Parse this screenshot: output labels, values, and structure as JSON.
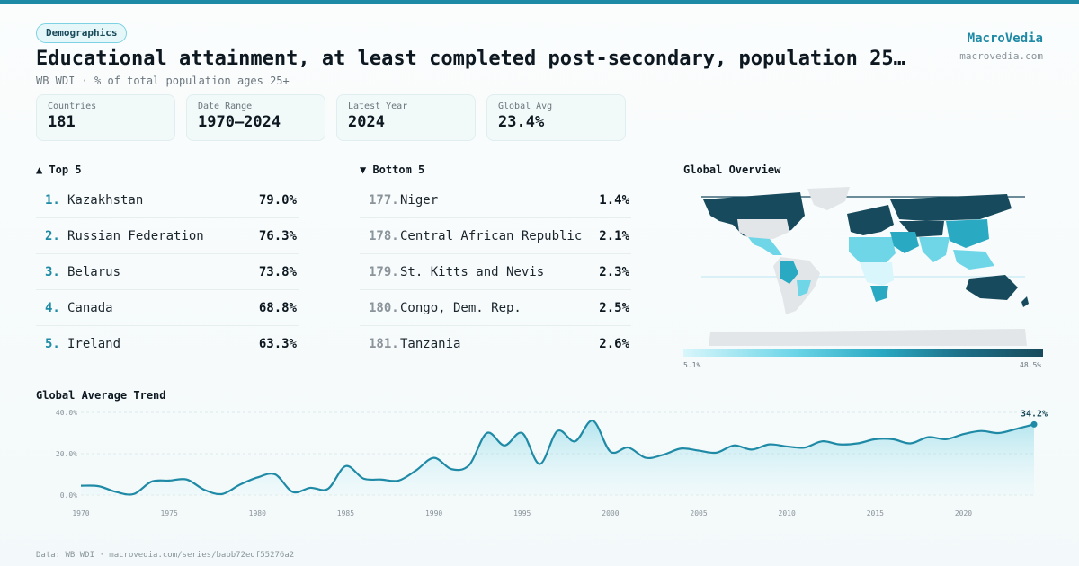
{
  "header": {
    "category": "Demographics",
    "title": "Educational attainment, at least completed post-secondary, population 25…",
    "subtitle": "WB WDI · % of total population ages 25+",
    "brand": "MacroVedia",
    "brand_url": "macrovedia.com"
  },
  "stats": [
    {
      "label": "Countries",
      "value": "181"
    },
    {
      "label": "Date Range",
      "value": "1970–2024"
    },
    {
      "label": "Latest Year",
      "value": "2024"
    },
    {
      "label": "Global Avg",
      "value": "23.4%"
    }
  ],
  "top5": {
    "heading": "▲ Top 5",
    "items": [
      {
        "rank": "1.",
        "name": "Kazakhstan",
        "value": "79.0%"
      },
      {
        "rank": "2.",
        "name": "Russian Federation",
        "value": "76.3%"
      },
      {
        "rank": "3.",
        "name": "Belarus",
        "value": "73.8%"
      },
      {
        "rank": "4.",
        "name": "Canada",
        "value": "68.8%"
      },
      {
        "rank": "5.",
        "name": "Ireland",
        "value": "63.3%"
      }
    ]
  },
  "bottom5": {
    "heading": "▼ Bottom 5",
    "items": [
      {
        "rank": "177.",
        "name": "Niger",
        "value": "1.4%"
      },
      {
        "rank": "178.",
        "name": "Central African Republic",
        "value": "2.1%"
      },
      {
        "rank": "179.",
        "name": "St. Kitts and Nevis",
        "value": "2.3%"
      },
      {
        "rank": "180.",
        "name": "Congo, Dem. Rep.",
        "value": "2.5%"
      },
      {
        "rank": "181.",
        "name": "Tanzania",
        "value": "2.6%"
      }
    ]
  },
  "map": {
    "heading": "Global Overview",
    "legend_min": "5.1%",
    "legend_max": "48.5%",
    "colors": {
      "low": "#d8f6fb",
      "mid": "#2aa9c3",
      "high": "#174a5c",
      "nodata": "#e3e6e8"
    }
  },
  "trend": {
    "heading": "Global Average Trend",
    "last_label": "34.2%"
  },
  "chart_data": {
    "type": "area",
    "title": "",
    "xlabel": "",
    "ylabel": "",
    "x": [
      1970,
      1971,
      1972,
      1973,
      1974,
      1975,
      1976,
      1977,
      1978,
      1979,
      1980,
      1981,
      1982,
      1983,
      1984,
      1985,
      1986,
      1987,
      1988,
      1989,
      1990,
      1991,
      1992,
      1993,
      1994,
      1995,
      1996,
      1997,
      1998,
      1999,
      2000,
      2001,
      2002,
      2003,
      2004,
      2005,
      2006,
      2007,
      2008,
      2009,
      2010,
      2011,
      2012,
      2013,
      2014,
      2015,
      2016,
      2017,
      2018,
      2019,
      2020,
      2021,
      2022,
      2023,
      2024
    ],
    "values": [
      4.5,
      4.3,
      1.5,
      0.5,
      6.5,
      7.0,
      7.5,
      2.5,
      0.5,
      5.0,
      8.5,
      10.0,
      1.5,
      3.5,
      3.0,
      14.0,
      8.0,
      7.5,
      7.0,
      12.0,
      18.0,
      12.5,
      14.5,
      30.0,
      24.0,
      30.0,
      15.0,
      31.0,
      26.0,
      36.0,
      21.0,
      23.0,
      18.0,
      19.5,
      22.5,
      21.5,
      20.5,
      24.0,
      22.0,
      24.5,
      23.5,
      23.0,
      26.0,
      24.5,
      25.0,
      27.0,
      27.0,
      25.0,
      28.0,
      27.0,
      29.5,
      31.0,
      30.0,
      32.0,
      34.2
    ],
    "yticks": [
      "0.0%",
      "20.0%",
      "40.0%"
    ],
    "ytick_values": [
      0,
      20,
      40
    ],
    "xticks": [
      1970,
      1975,
      1980,
      1985,
      1990,
      1995,
      2000,
      2005,
      2010,
      2015,
      2020
    ],
    "ylim": [
      0,
      40
    ],
    "grid": true,
    "color": "#1f8aa6"
  },
  "footer": "Data: WB WDI · macrovedia.com/series/babb72edf55276a2"
}
